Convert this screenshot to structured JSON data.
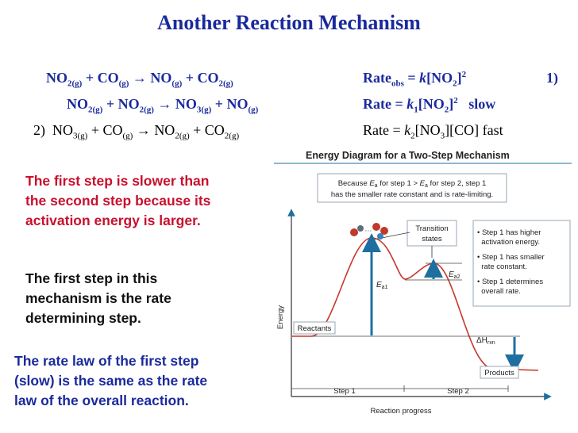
{
  "title": "Another Reaction Mechanism",
  "overall": {
    "lhs1": "NO",
    "lhs1_sub": "2(g)",
    "plus1": " + CO",
    "plus1_sub": "(g)",
    "arrow": " → ",
    "rhs1": "NO",
    "rhs1_sub": "(g)",
    "plus2": " + CO",
    "plus2_sub": "2(g)",
    "rate_label": "Rate",
    "rate_sub": "obs",
    "rate_eq": " = ",
    "rate_k": "k",
    "rate_conc": "[NO",
    "rate_conc_sub": "2",
    "rate_conc_end": "]",
    "rate_exp": "2"
  },
  "step1": {
    "number": "1)",
    "a": "NO",
    "a_sub": "2(g)",
    "b": " + NO",
    "b_sub": "2(g)",
    "arrow": " → ",
    "c": "NO",
    "c_sub": "3(g)",
    "d": " + NO",
    "d_sub": "(g)",
    "rate_label": "Rate = ",
    "rate_k": "k",
    "rate_k_sub": "1",
    "rate_conc": "[NO",
    "rate_conc_sub": "2",
    "rate_conc_end": "]",
    "rate_exp": "2",
    "speed": "slow"
  },
  "step2": {
    "number": "2)",
    "a": "NO",
    "a_sub": "3(g)",
    "b": " + CO",
    "b_sub": "(g)",
    "arrow": " → ",
    "c": "NO",
    "c_sub": "2(g)",
    "d": "  + CO",
    "d_sub": "2(g)",
    "rate_label": "Rate = ",
    "rate_k": "k",
    "rate_k_sub": "2",
    "rate_conc": "[NO",
    "rate_conc_sub": "3",
    "rate_conc_end": "][CO]",
    "speed": "fast"
  },
  "notes": {
    "first_slower": "The first step is slower than\nthe second step because its\nactivation energy is larger.",
    "rate_determining": "The first step in this\nmechanism is the rate\ndetermining step.",
    "rate_law": "The rate law of the first step\n(slow) is the same as the rate\nlaw of the overall reaction."
  },
  "diagram": {
    "title": "Energy Diagram for a Two-Step Mechanism",
    "callout_line1_a": "Because ",
    "callout_E": "E",
    "callout_a": "a",
    "callout_line1_b": " for step 1 > ",
    "callout_line1_c": " for step 2, step 1",
    "callout_line2": "has the smaller rate constant and is rate-limiting.",
    "transition_line1": "Transition",
    "transition_line2": "states",
    "bullets": [
      [
        "• Step 1 has higher",
        "  activation energy."
      ],
      [
        "• Step 1 has smaller",
        "  rate constant."
      ],
      [
        "• Step 1 determines",
        "  overall rate."
      ]
    ],
    "energy_axis": "Energy",
    "reactants": "Reactants",
    "products": "Products",
    "ea1": "E",
    "ea1_sub": "a1",
    "ea2": "E",
    "ea2_sub": "a2",
    "dh": "ΔH",
    "dh_sub": "rxn",
    "step1_label": "Step 1",
    "step2_label": "Step 2",
    "xaxis": "Reaction progress",
    "colors": {
      "curve": "#c8372d",
      "arrow": "#1e6fa0",
      "callout_border": "#9aa7b5"
    }
  }
}
